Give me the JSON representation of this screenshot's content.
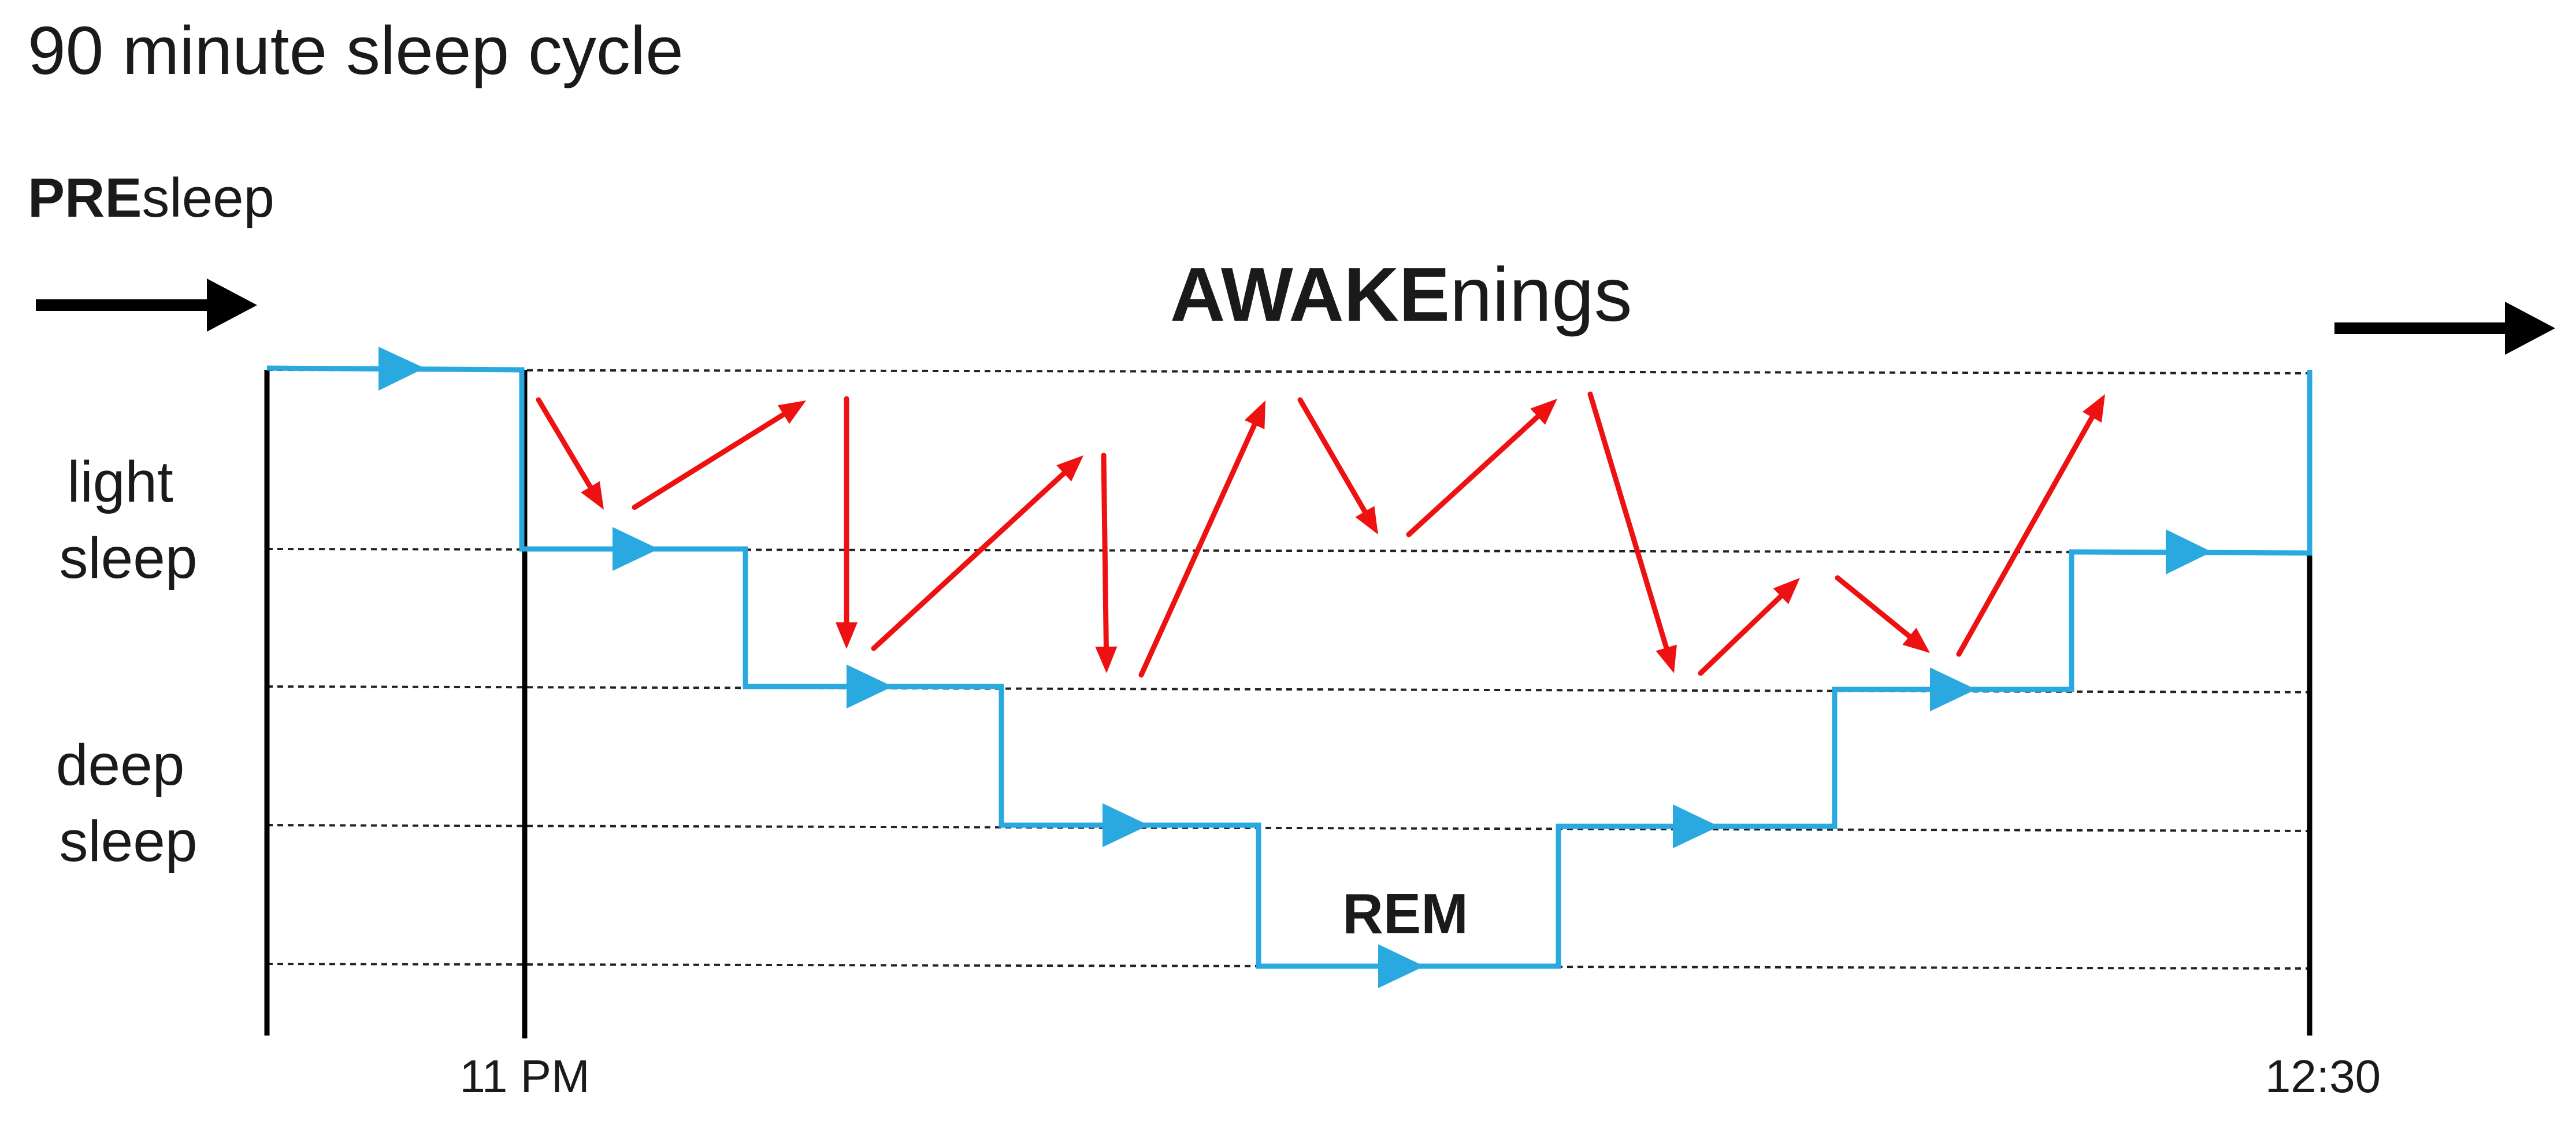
{
  "title": "90 minute sleep cycle",
  "presleep": {
    "bold": "PRE",
    "regular": "sleep"
  },
  "awakenings": {
    "bold": "AWAKE",
    "regular": "nings"
  },
  "y_labels": {
    "light": [
      "light",
      "sleep"
    ],
    "deep": [
      "deep",
      "sleep"
    ]
  },
  "x_ticks": {
    "start": "11 PM",
    "end": "12:30"
  },
  "rem_label": "REM",
  "colors": {
    "sleep_path": "#29a9e0",
    "awakening_arrows": "#ee1111",
    "axis": "#000000",
    "text": "#1a1a1a"
  }
}
